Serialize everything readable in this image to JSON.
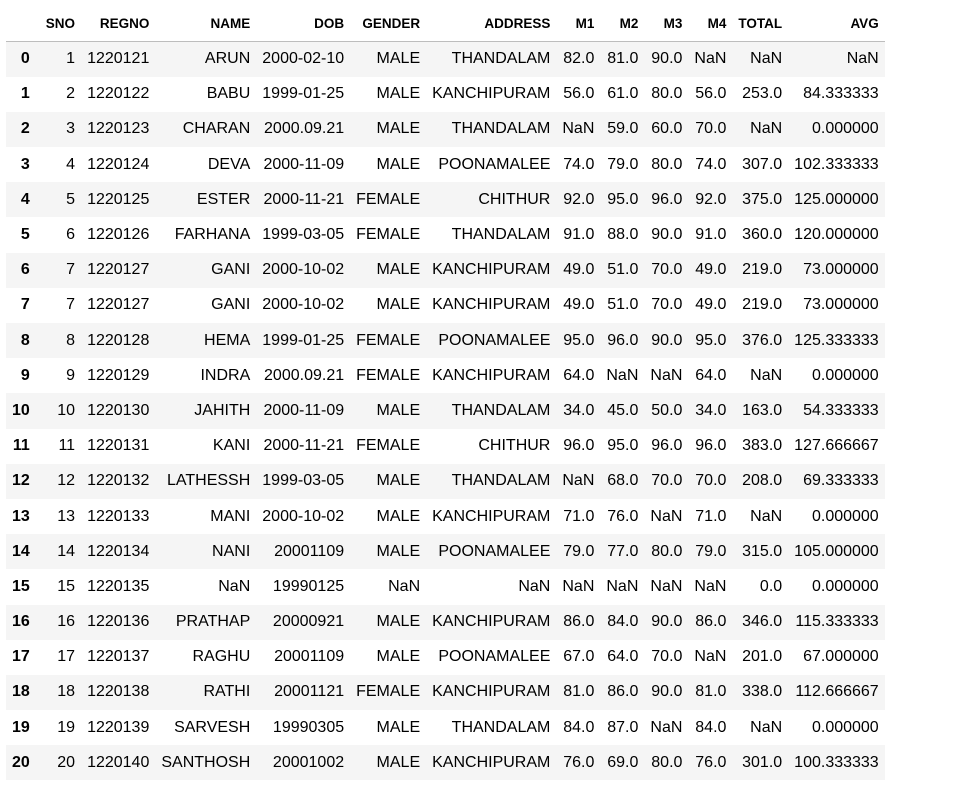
{
  "table": {
    "columns": [
      "",
      "SNO",
      "REGNO",
      "NAME",
      "DOB",
      "GENDER",
      "ADDRESS",
      "M1",
      "M2",
      "M3",
      "M4",
      "TOTAL",
      "AVG"
    ],
    "rows": [
      [
        "0",
        "1",
        "1220121",
        "ARUN",
        "2000-02-10",
        "MALE",
        "THANDALAM",
        "82.0",
        "81.0",
        "90.0",
        "NaN",
        "NaN",
        "NaN"
      ],
      [
        "1",
        "2",
        "1220122",
        "BABU",
        "1999-01-25",
        "MALE",
        "KANCHIPURAM",
        "56.0",
        "61.0",
        "80.0",
        "56.0",
        "253.0",
        "84.333333"
      ],
      [
        "2",
        "3",
        "1220123",
        "CHARAN",
        "2000.09.21",
        "MALE",
        "THANDALAM",
        "NaN",
        "59.0",
        "60.0",
        "70.0",
        "NaN",
        "0.000000"
      ],
      [
        "3",
        "4",
        "1220124",
        "DEVA",
        "2000-11-09",
        "MALE",
        "POONAMALEE",
        "74.0",
        "79.0",
        "80.0",
        "74.0",
        "307.0",
        "102.333333"
      ],
      [
        "4",
        "5",
        "1220125",
        "ESTER",
        "2000-11-21",
        "FEMALE",
        "CHITHUR",
        "92.0",
        "95.0",
        "96.0",
        "92.0",
        "375.0",
        "125.000000"
      ],
      [
        "5",
        "6",
        "1220126",
        "FARHANA",
        "1999-03-05",
        "FEMALE",
        "THANDALAM",
        "91.0",
        "88.0",
        "90.0",
        "91.0",
        "360.0",
        "120.000000"
      ],
      [
        "6",
        "7",
        "1220127",
        "GANI",
        "2000-10-02",
        "MALE",
        "KANCHIPURAM",
        "49.0",
        "51.0",
        "70.0",
        "49.0",
        "219.0",
        "73.000000"
      ],
      [
        "7",
        "7",
        "1220127",
        "GANI",
        "2000-10-02",
        "MALE",
        "KANCHIPURAM",
        "49.0",
        "51.0",
        "70.0",
        "49.0",
        "219.0",
        "73.000000"
      ],
      [
        "8",
        "8",
        "1220128",
        "HEMA",
        "1999-01-25",
        "FEMALE",
        "POONAMALEE",
        "95.0",
        "96.0",
        "90.0",
        "95.0",
        "376.0",
        "125.333333"
      ],
      [
        "9",
        "9",
        "1220129",
        "INDRA",
        "2000.09.21",
        "FEMALE",
        "KANCHIPURAM",
        "64.0",
        "NaN",
        "NaN",
        "64.0",
        "NaN",
        "0.000000"
      ],
      [
        "10",
        "10",
        "1220130",
        "JAHITH",
        "2000-11-09",
        "MALE",
        "THANDALAM",
        "34.0",
        "45.0",
        "50.0",
        "34.0",
        "163.0",
        "54.333333"
      ],
      [
        "11",
        "11",
        "1220131",
        "KANI",
        "2000-11-21",
        "FEMALE",
        "CHITHUR",
        "96.0",
        "95.0",
        "96.0",
        "96.0",
        "383.0",
        "127.666667"
      ],
      [
        "12",
        "12",
        "1220132",
        "LATHESSH",
        "1999-03-05",
        "MALE",
        "THANDALAM",
        "NaN",
        "68.0",
        "70.0",
        "70.0",
        "208.0",
        "69.333333"
      ],
      [
        "13",
        "13",
        "1220133",
        "MANI",
        "2000-10-02",
        "MALE",
        "KANCHIPURAM",
        "71.0",
        "76.0",
        "NaN",
        "71.0",
        "NaN",
        "0.000000"
      ],
      [
        "14",
        "14",
        "1220134",
        "NANI",
        "20001109",
        "MALE",
        "POONAMALEE",
        "79.0",
        "77.0",
        "80.0",
        "79.0",
        "315.0",
        "105.000000"
      ],
      [
        "15",
        "15",
        "1220135",
        "NaN",
        "19990125",
        "NaN",
        "NaN",
        "NaN",
        "NaN",
        "NaN",
        "NaN",
        "0.0",
        "0.000000"
      ],
      [
        "16",
        "16",
        "1220136",
        "PRATHAP",
        "20000921",
        "MALE",
        "KANCHIPURAM",
        "86.0",
        "84.0",
        "90.0",
        "86.0",
        "346.0",
        "115.333333"
      ],
      [
        "17",
        "17",
        "1220137",
        "RAGHU",
        "20001109",
        "MALE",
        "POONAMALEE",
        "67.0",
        "64.0",
        "70.0",
        "NaN",
        "201.0",
        "67.000000"
      ],
      [
        "18",
        "18",
        "1220138",
        "RATHI",
        "20001121",
        "FEMALE",
        "KANCHIPURAM",
        "81.0",
        "86.0",
        "90.0",
        "81.0",
        "338.0",
        "112.666667"
      ],
      [
        "19",
        "19",
        "1220139",
        "SARVESH",
        "19990305",
        "MALE",
        "THANDALAM",
        "84.0",
        "87.0",
        "NaN",
        "84.0",
        "NaN",
        "0.000000"
      ],
      [
        "20",
        "20",
        "1220140",
        "SANTHOSH",
        "20001002",
        "MALE",
        "KANCHIPURAM",
        "76.0",
        "69.0",
        "80.0",
        "76.0",
        "301.0",
        "100.333333"
      ]
    ]
  },
  "colors": {
    "stripe": "#f5f5f5",
    "header_border": "#bdbdbd",
    "text": "#000000"
  }
}
